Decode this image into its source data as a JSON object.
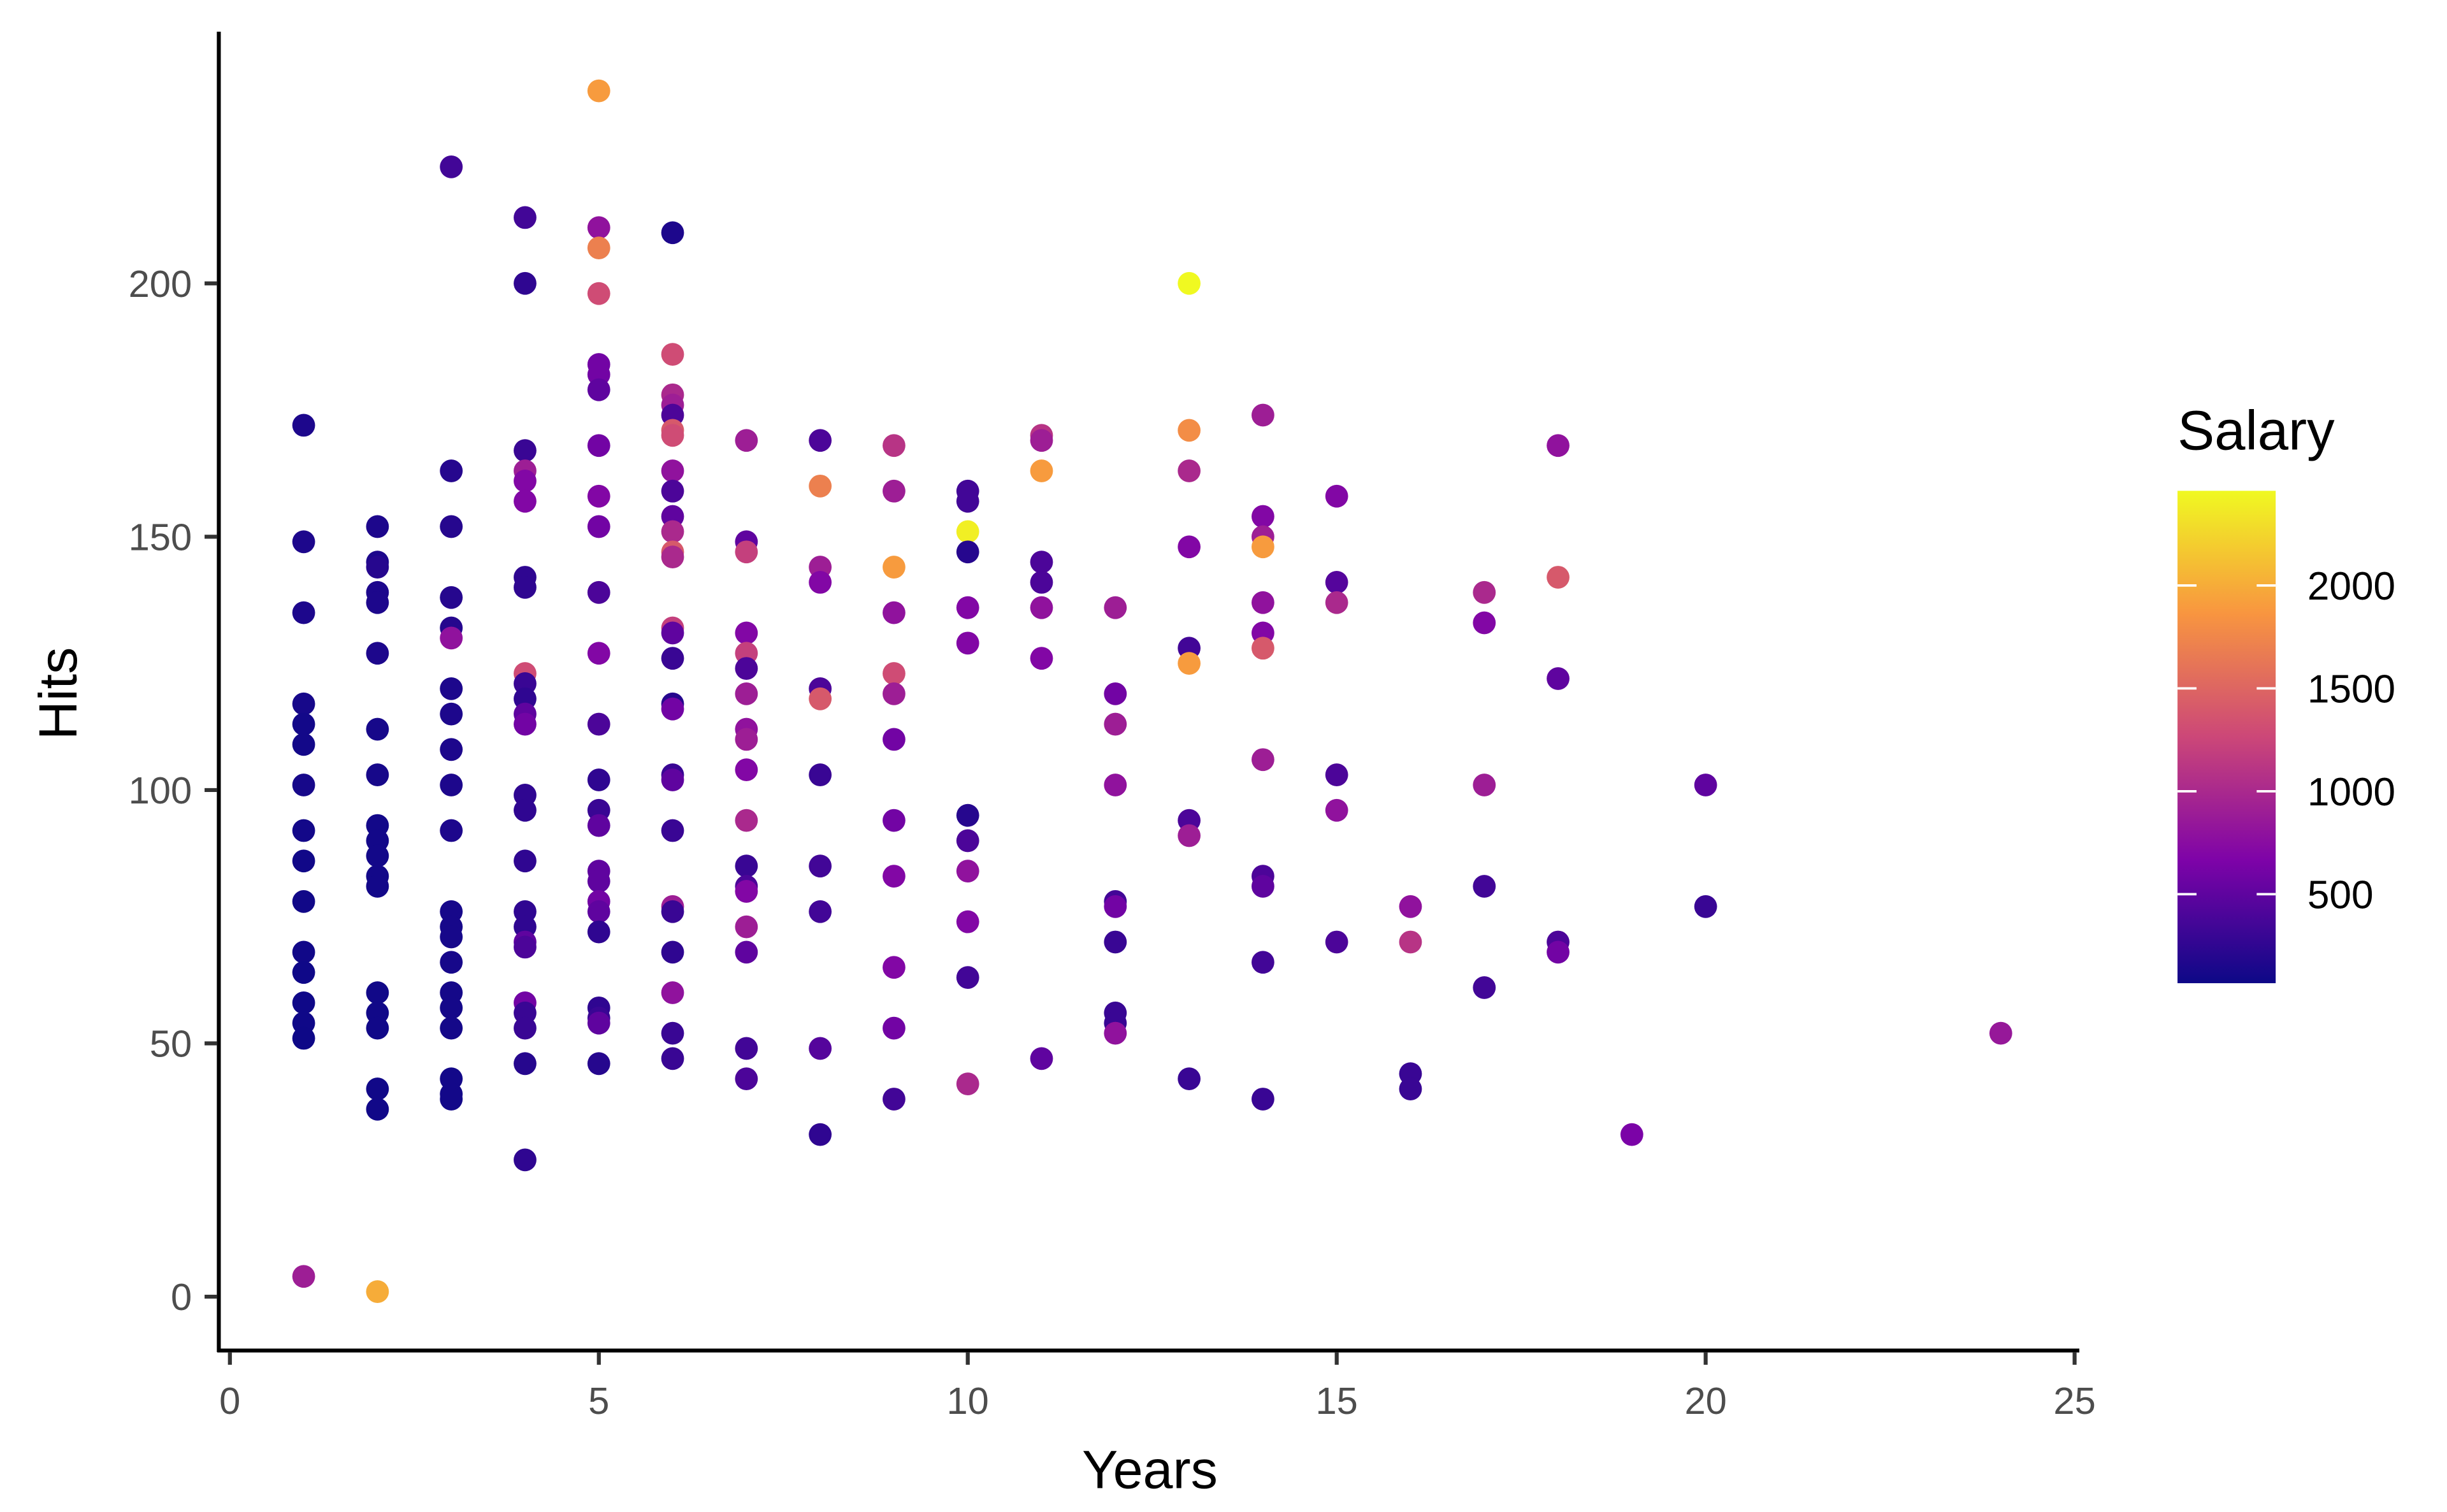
{
  "chart_data": {
    "type": "scatter",
    "title": "",
    "xlabel": "Years",
    "ylabel": "Hits",
    "xlim": [
      0,
      25
    ],
    "ylim": [
      0,
      245
    ],
    "xticks": [
      "0",
      "5",
      "10",
      "15",
      "20",
      "25"
    ],
    "yticks": [
      "0",
      "50",
      "100",
      "150",
      "200"
    ],
    "grid": false,
    "color_scale": {
      "title": "Salary",
      "palette": "plasma",
      "range": [
        67.5,
        2460
      ],
      "ticks": [
        "500",
        "1000",
        "1500",
        "2000"
      ],
      "legend_position": "right",
      "stops": [
        "#0d0887",
        "#7e03a8",
        "#cc4778",
        "#f89540",
        "#f0f921"
      ]
    },
    "points_format": [
      "Years",
      "Hits",
      "Salary"
    ],
    "points": [
      [
        1,
        172,
        150
      ],
      [
        1,
        149,
        150
      ],
      [
        1,
        135,
        150
      ],
      [
        1,
        117,
        120
      ],
      [
        1,
        113,
        100
      ],
      [
        1,
        109,
        100
      ],
      [
        1,
        101,
        120
      ],
      [
        1,
        92,
        100
      ],
      [
        1,
        86,
        90
      ],
      [
        1,
        78,
        90
      ],
      [
        1,
        68,
        90
      ],
      [
        1,
        64,
        80
      ],
      [
        1,
        58,
        80
      ],
      [
        1,
        54,
        80
      ],
      [
        1,
        51,
        75
      ],
      [
        1,
        4,
        900
      ],
      [
        2,
        152,
        150
      ],
      [
        2,
        145,
        150
      ],
      [
        2,
        144,
        200
      ],
      [
        2,
        139,
        150
      ],
      [
        2,
        137,
        150
      ],
      [
        2,
        127,
        150
      ],
      [
        2,
        112,
        120
      ],
      [
        2,
        103,
        120
      ],
      [
        2,
        93,
        100
      ],
      [
        2,
        90,
        100
      ],
      [
        2,
        87,
        100
      ],
      [
        2,
        83,
        100
      ],
      [
        2,
        81,
        100
      ],
      [
        2,
        60,
        90
      ],
      [
        2,
        56,
        90
      ],
      [
        2,
        53,
        90
      ],
      [
        2,
        41,
        90
      ],
      [
        2,
        37,
        90
      ],
      [
        2,
        1,
        2000
      ],
      [
        3,
        223,
        350
      ],
      [
        3,
        163,
        200
      ],
      [
        3,
        152,
        200
      ],
      [
        3,
        138,
        200
      ],
      [
        3,
        132,
        200
      ],
      [
        3,
        130,
        800
      ],
      [
        3,
        120,
        150
      ],
      [
        3,
        115,
        150
      ],
      [
        3,
        108,
        150
      ],
      [
        3,
        101,
        150
      ],
      [
        3,
        92,
        150
      ],
      [
        3,
        76,
        120
      ],
      [
        3,
        73,
        120
      ],
      [
        3,
        71,
        120
      ],
      [
        3,
        66,
        120
      ],
      [
        3,
        60,
        110
      ],
      [
        3,
        57,
        110
      ],
      [
        3,
        53,
        110
      ],
      [
        3,
        43,
        100
      ],
      [
        3,
        40,
        100
      ],
      [
        3,
        39,
        100
      ],
      [
        4,
        213,
        350
      ],
      [
        4,
        200,
        250
      ],
      [
        4,
        167,
        300
      ],
      [
        4,
        163,
        900
      ],
      [
        4,
        161,
        700
      ],
      [
        4,
        157,
        700
      ],
      [
        4,
        142,
        250
      ],
      [
        4,
        140,
        250
      ],
      [
        4,
        123,
        1300
      ],
      [
        4,
        121,
        300
      ],
      [
        4,
        118,
        250
      ],
      [
        4,
        115,
        500
      ],
      [
        4,
        113,
        600
      ],
      [
        4,
        99,
        250
      ],
      [
        4,
        96,
        250
      ],
      [
        4,
        86,
        250
      ],
      [
        4,
        76,
        250
      ],
      [
        4,
        73,
        250
      ],
      [
        4,
        70,
        500
      ],
      [
        4,
        69,
        400
      ],
      [
        4,
        58,
        600
      ],
      [
        4,
        56,
        300
      ],
      [
        4,
        53,
        300
      ],
      [
        4,
        46,
        200
      ],
      [
        4,
        27,
        250
      ],
      [
        5,
        238,
        1900
      ],
      [
        5,
        211,
        800
      ],
      [
        5,
        207,
        1700
      ],
      [
        5,
        198,
        1300
      ],
      [
        5,
        184,
        600
      ],
      [
        5,
        182,
        600
      ],
      [
        5,
        179,
        500
      ],
      [
        5,
        168,
        600
      ],
      [
        5,
        158,
        700
      ],
      [
        5,
        152,
        600
      ],
      [
        5,
        139,
        400
      ],
      [
        5,
        127,
        700
      ],
      [
        5,
        113,
        400
      ],
      [
        5,
        102,
        250
      ],
      [
        5,
        96,
        300
      ],
      [
        5,
        93,
        500
      ],
      [
        5,
        84,
        500
      ],
      [
        5,
        82,
        500
      ],
      [
        5,
        78,
        600
      ],
      [
        5,
        76,
        500
      ],
      [
        5,
        72,
        250
      ],
      [
        5,
        57,
        250
      ],
      [
        5,
        55,
        300
      ],
      [
        5,
        54,
        500
      ],
      [
        5,
        46,
        200
      ],
      [
        6,
        210,
        150
      ],
      [
        6,
        186,
        1300
      ],
      [
        6,
        178,
        1000
      ],
      [
        6,
        176,
        900
      ],
      [
        6,
        174,
        400
      ],
      [
        6,
        171,
        1400
      ],
      [
        6,
        170,
        1300
      ],
      [
        6,
        163,
        800
      ],
      [
        6,
        159,
        400
      ],
      [
        6,
        154,
        500
      ],
      [
        6,
        151,
        1000
      ],
      [
        6,
        147,
        1400
      ],
      [
        6,
        146,
        1000
      ],
      [
        6,
        132,
        1200
      ],
      [
        6,
        131,
        500
      ],
      [
        6,
        126,
        300
      ],
      [
        6,
        117,
        200
      ],
      [
        6,
        116,
        600
      ],
      [
        6,
        103,
        300
      ],
      [
        6,
        102,
        500
      ],
      [
        6,
        92,
        300
      ],
      [
        6,
        77,
        900
      ],
      [
        6,
        76,
        300
      ],
      [
        6,
        68,
        250
      ],
      [
        6,
        60,
        800
      ],
      [
        6,
        52,
        300
      ],
      [
        6,
        47,
        300
      ],
      [
        7,
        169,
        900
      ],
      [
        7,
        149,
        500
      ],
      [
        7,
        147,
        1200
      ],
      [
        7,
        131,
        700
      ],
      [
        7,
        127,
        1200
      ],
      [
        7,
        124,
        400
      ],
      [
        7,
        119,
        900
      ],
      [
        7,
        112,
        800
      ],
      [
        7,
        110,
        900
      ],
      [
        7,
        104,
        700
      ],
      [
        7,
        94,
        1000
      ],
      [
        7,
        85,
        300
      ],
      [
        7,
        81,
        400
      ],
      [
        7,
        80,
        700
      ],
      [
        7,
        73,
        900
      ],
      [
        7,
        68,
        500
      ],
      [
        7,
        49,
        350
      ],
      [
        7,
        43,
        400
      ],
      [
        8,
        169,
        400
      ],
      [
        8,
        160,
        1700
      ],
      [
        8,
        144,
        900
      ],
      [
        8,
        141,
        700
      ],
      [
        8,
        120,
        400
      ],
      [
        8,
        118,
        1400
      ],
      [
        8,
        103,
        300
      ],
      [
        8,
        85,
        350
      ],
      [
        8,
        76,
        350
      ],
      [
        8,
        49,
        450
      ],
      [
        8,
        32,
        250
      ],
      [
        9,
        168,
        1100
      ],
      [
        9,
        159,
        900
      ],
      [
        9,
        144,
        1900
      ],
      [
        9,
        135,
        800
      ],
      [
        9,
        123,
        1300
      ],
      [
        9,
        119,
        900
      ],
      [
        9,
        110,
        600
      ],
      [
        9,
        94,
        600
      ],
      [
        9,
        83,
        700
      ],
      [
        9,
        65,
        700
      ],
      [
        9,
        53,
        600
      ],
      [
        9,
        39,
        350
      ],
      [
        10,
        159,
        350
      ],
      [
        10,
        157,
        350
      ],
      [
        10,
        151,
        2400
      ],
      [
        10,
        147,
        200
      ],
      [
        10,
        136,
        700
      ],
      [
        10,
        129,
        700
      ],
      [
        10,
        95,
        200
      ],
      [
        10,
        90,
        400
      ],
      [
        10,
        84,
        800
      ],
      [
        10,
        74,
        700
      ],
      [
        10,
        63,
        350
      ],
      [
        10,
        42,
        1000
      ],
      [
        11,
        170,
        1100
      ],
      [
        11,
        169,
        900
      ],
      [
        11,
        163,
        1900
      ],
      [
        11,
        145,
        400
      ],
      [
        11,
        141,
        400
      ],
      [
        11,
        136,
        800
      ],
      [
        11,
        126,
        700
      ],
      [
        11,
        47,
        500
      ],
      [
        12,
        136,
        900
      ],
      [
        12,
        119,
        600
      ],
      [
        12,
        113,
        900
      ],
      [
        12,
        101,
        800
      ],
      [
        12,
        78,
        350
      ],
      [
        12,
        77,
        600
      ],
      [
        12,
        70,
        300
      ],
      [
        12,
        56,
        300
      ],
      [
        12,
        54,
        300
      ],
      [
        12,
        52,
        800
      ],
      [
        13,
        200,
        2460
      ],
      [
        13,
        171,
        1800
      ],
      [
        13,
        163,
        1000
      ],
      [
        13,
        148,
        700
      ],
      [
        13,
        128,
        350
      ],
      [
        13,
        125,
        1900
      ],
      [
        13,
        94,
        400
      ],
      [
        13,
        91,
        900
      ],
      [
        13,
        43,
        300
      ],
      [
        14,
        174,
        900
      ],
      [
        14,
        154,
        700
      ],
      [
        14,
        150,
        900
      ],
      [
        14,
        148,
        1900
      ],
      [
        14,
        137,
        800
      ],
      [
        14,
        131,
        700
      ],
      [
        14,
        128,
        1400
      ],
      [
        14,
        106,
        900
      ],
      [
        14,
        83,
        400
      ],
      [
        14,
        81,
        500
      ],
      [
        14,
        66,
        350
      ],
      [
        14,
        39,
        300
      ],
      [
        15,
        158,
        700
      ],
      [
        15,
        141,
        450
      ],
      [
        15,
        137,
        1000
      ],
      [
        15,
        103,
        400
      ],
      [
        15,
        96,
        800
      ],
      [
        15,
        70,
        400
      ],
      [
        16,
        77,
        800
      ],
      [
        16,
        70,
        1100
      ],
      [
        16,
        44,
        300
      ],
      [
        16,
        41,
        300
      ],
      [
        17,
        139,
        1000
      ],
      [
        17,
        133,
        700
      ],
      [
        17,
        101,
        900
      ],
      [
        17,
        81,
        350
      ],
      [
        17,
        61,
        350
      ],
      [
        18,
        168,
        800
      ],
      [
        18,
        142,
        1400
      ],
      [
        18,
        122,
        500
      ],
      [
        18,
        70,
        400
      ],
      [
        18,
        68,
        600
      ],
      [
        19,
        32,
        650
      ],
      [
        20,
        101,
        500
      ],
      [
        20,
        77,
        300
      ],
      [
        24,
        52,
        850
      ]
    ]
  }
}
